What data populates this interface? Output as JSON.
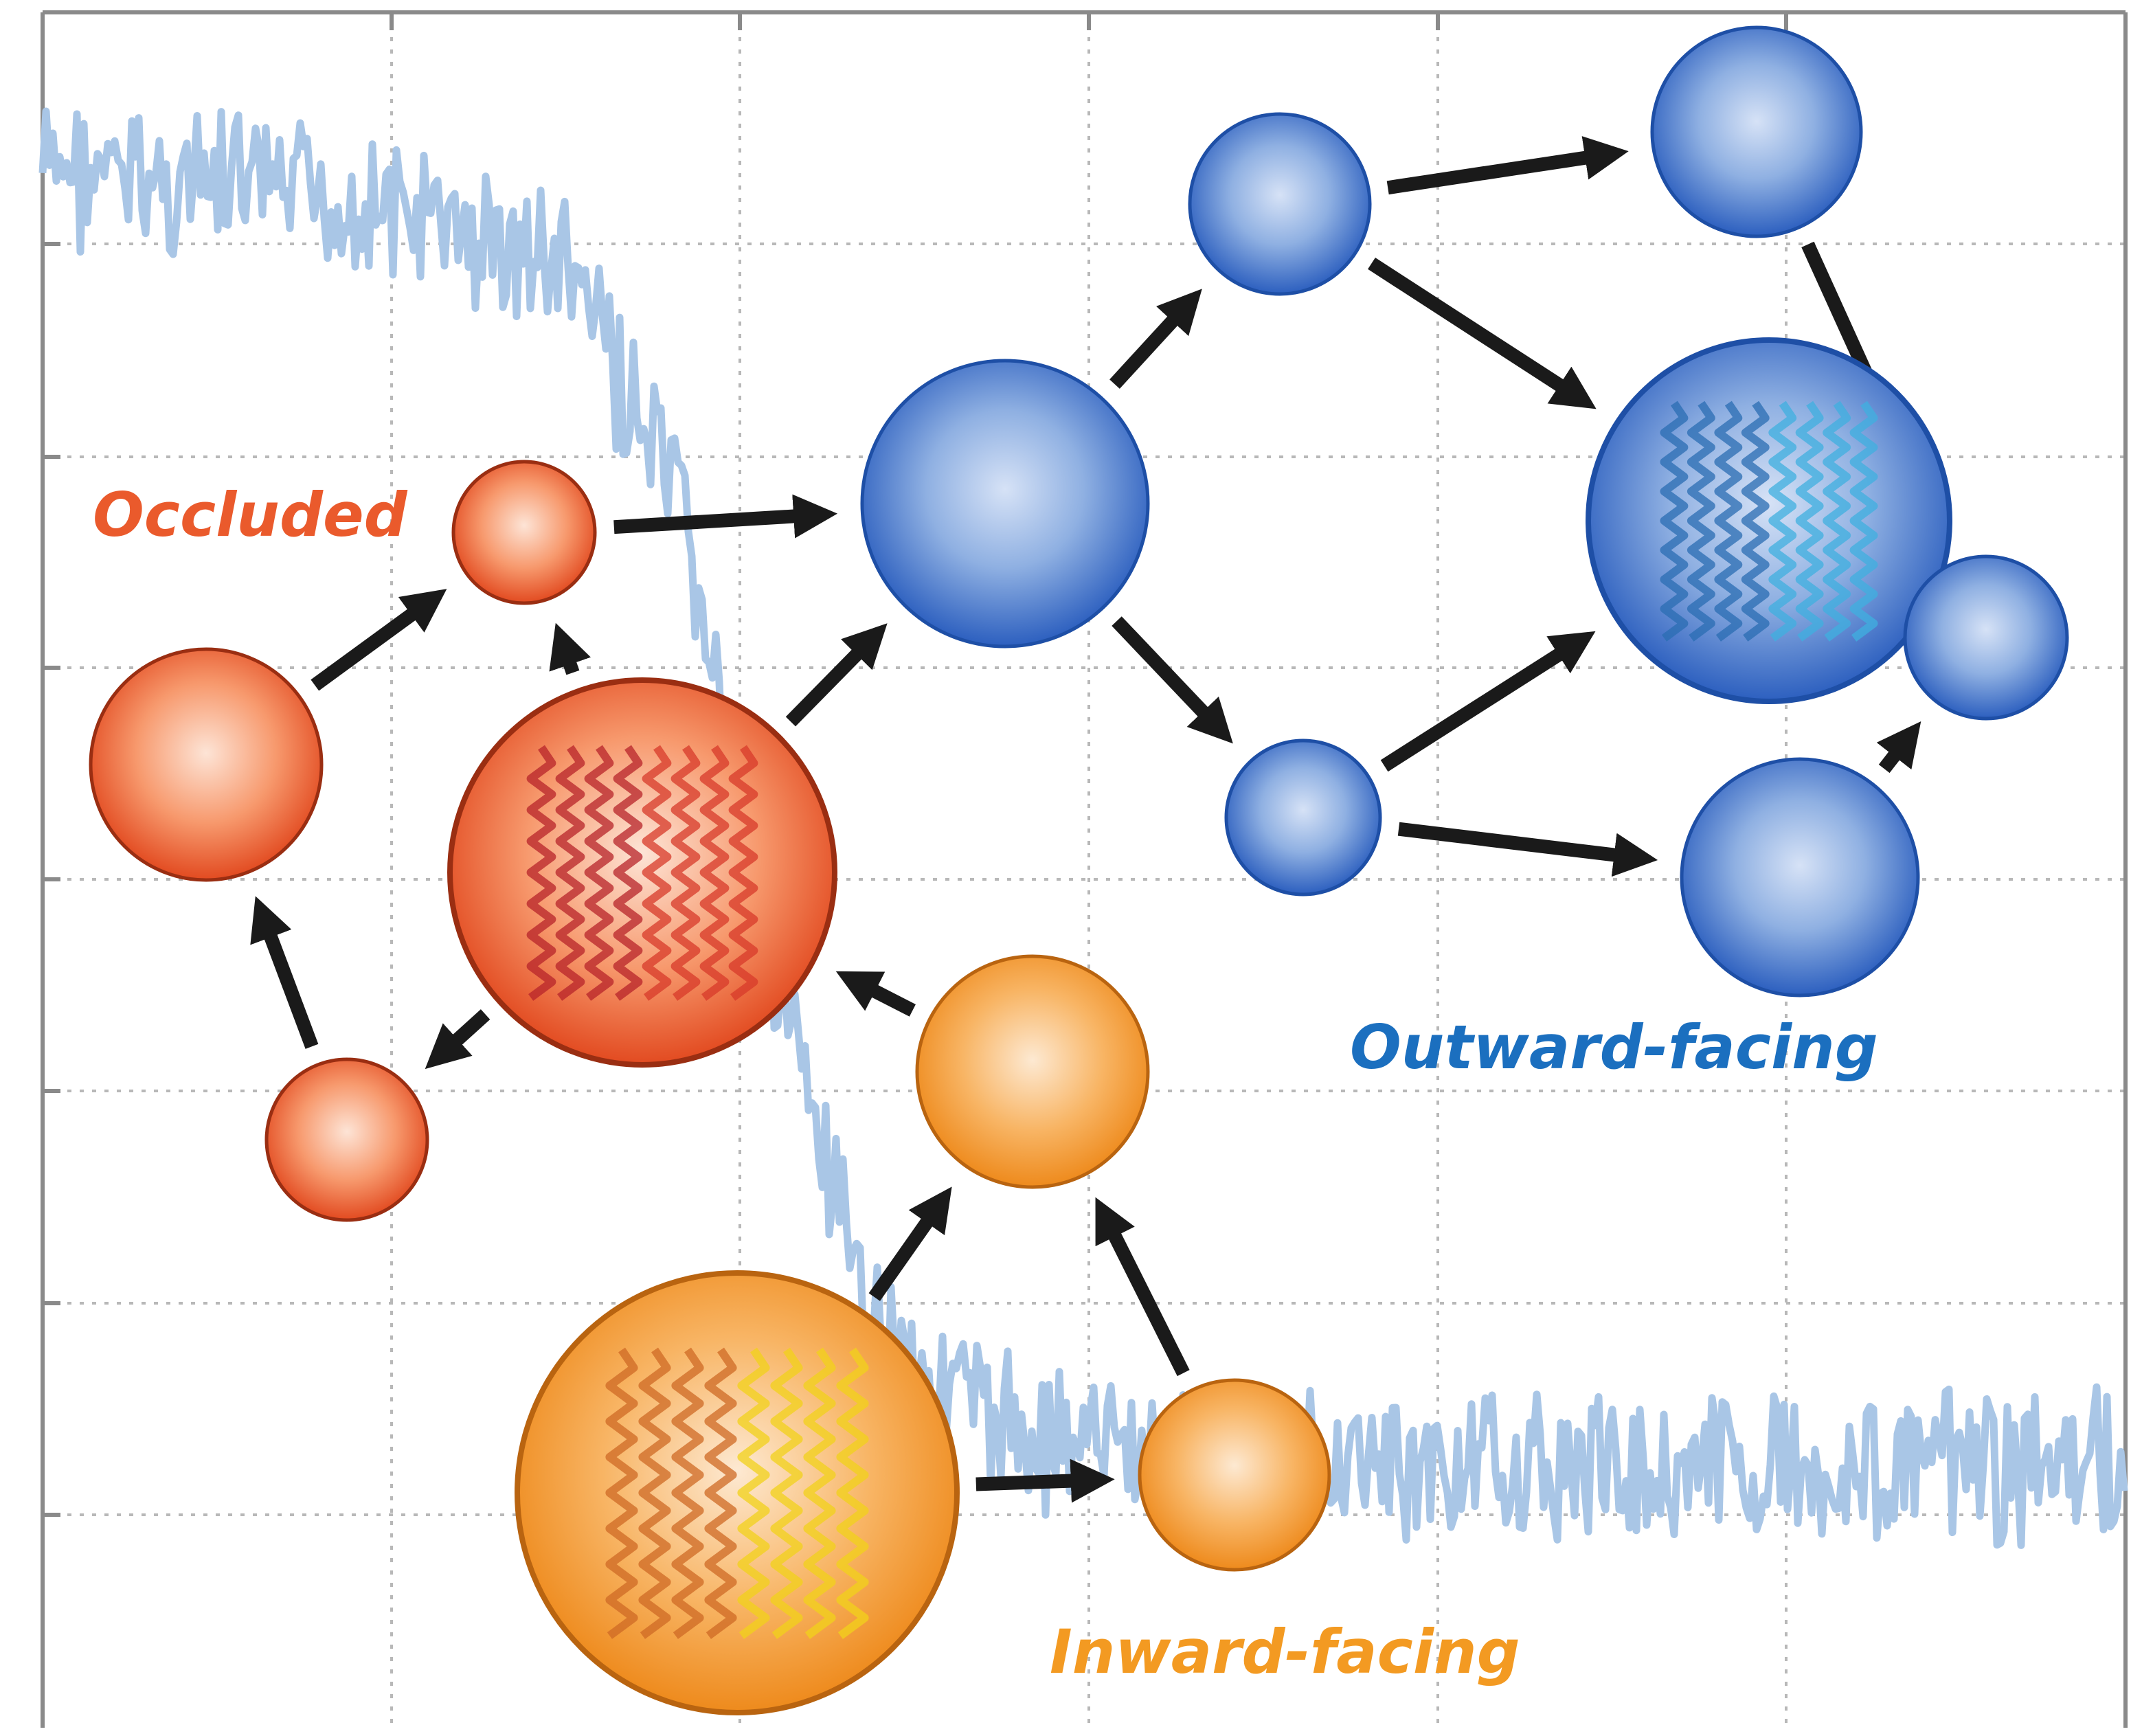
{
  "labels": {
    "occluded": "Occluded",
    "outward": "Outward-facing",
    "inward": "Inward-facing"
  },
  "colors": {
    "occluded": "#ea5a2c",
    "outward": "#1b6fbf",
    "inward": "#f39a22",
    "trace": "#a9c6e6",
    "grid": "#b8b8b8",
    "axis": "#8a8a8a",
    "arrow": "#1a1a1a"
  },
  "states": [
    {
      "group": "occluded",
      "protein": false
    },
    {
      "group": "occluded",
      "protein": false
    },
    {
      "group": "occluded",
      "protein": true
    },
    {
      "group": "occluded",
      "protein": false
    },
    {
      "group": "outward",
      "protein": false
    },
    {
      "group": "outward",
      "protein": false
    },
    {
      "group": "outward",
      "protein": false
    },
    {
      "group": "outward",
      "protein": true
    },
    {
      "group": "outward",
      "protein": false
    },
    {
      "group": "outward",
      "protein": false
    },
    {
      "group": "outward",
      "protein": false
    },
    {
      "group": "inward",
      "protein": false
    },
    {
      "group": "inward",
      "protein": true
    },
    {
      "group": "inward",
      "protein": false
    }
  ],
  "transitions": [
    {
      "from": 1,
      "to": 0
    },
    {
      "from": 2,
      "to": 0
    },
    {
      "from": 3,
      "to": 1
    },
    {
      "from": 2,
      "to": 3
    },
    {
      "from": 0,
      "to": 4
    },
    {
      "from": 2,
      "to": 4
    },
    {
      "from": 4,
      "to": 5
    },
    {
      "from": 4,
      "to": 6
    },
    {
      "from": 5,
      "to": 8
    },
    {
      "from": 5,
      "to": 7
    },
    {
      "from": 6,
      "to": 7
    },
    {
      "from": 6,
      "to": 10
    },
    {
      "from": 8,
      "to": 9
    },
    {
      "from": 9,
      "to": 7
    },
    {
      "from": 10,
      "to": 9
    },
    {
      "from": 11,
      "to": 2
    },
    {
      "from": 12,
      "to": 11
    },
    {
      "from": 12,
      "to": 13
    },
    {
      "from": 13,
      "to": 11
    }
  ]
}
